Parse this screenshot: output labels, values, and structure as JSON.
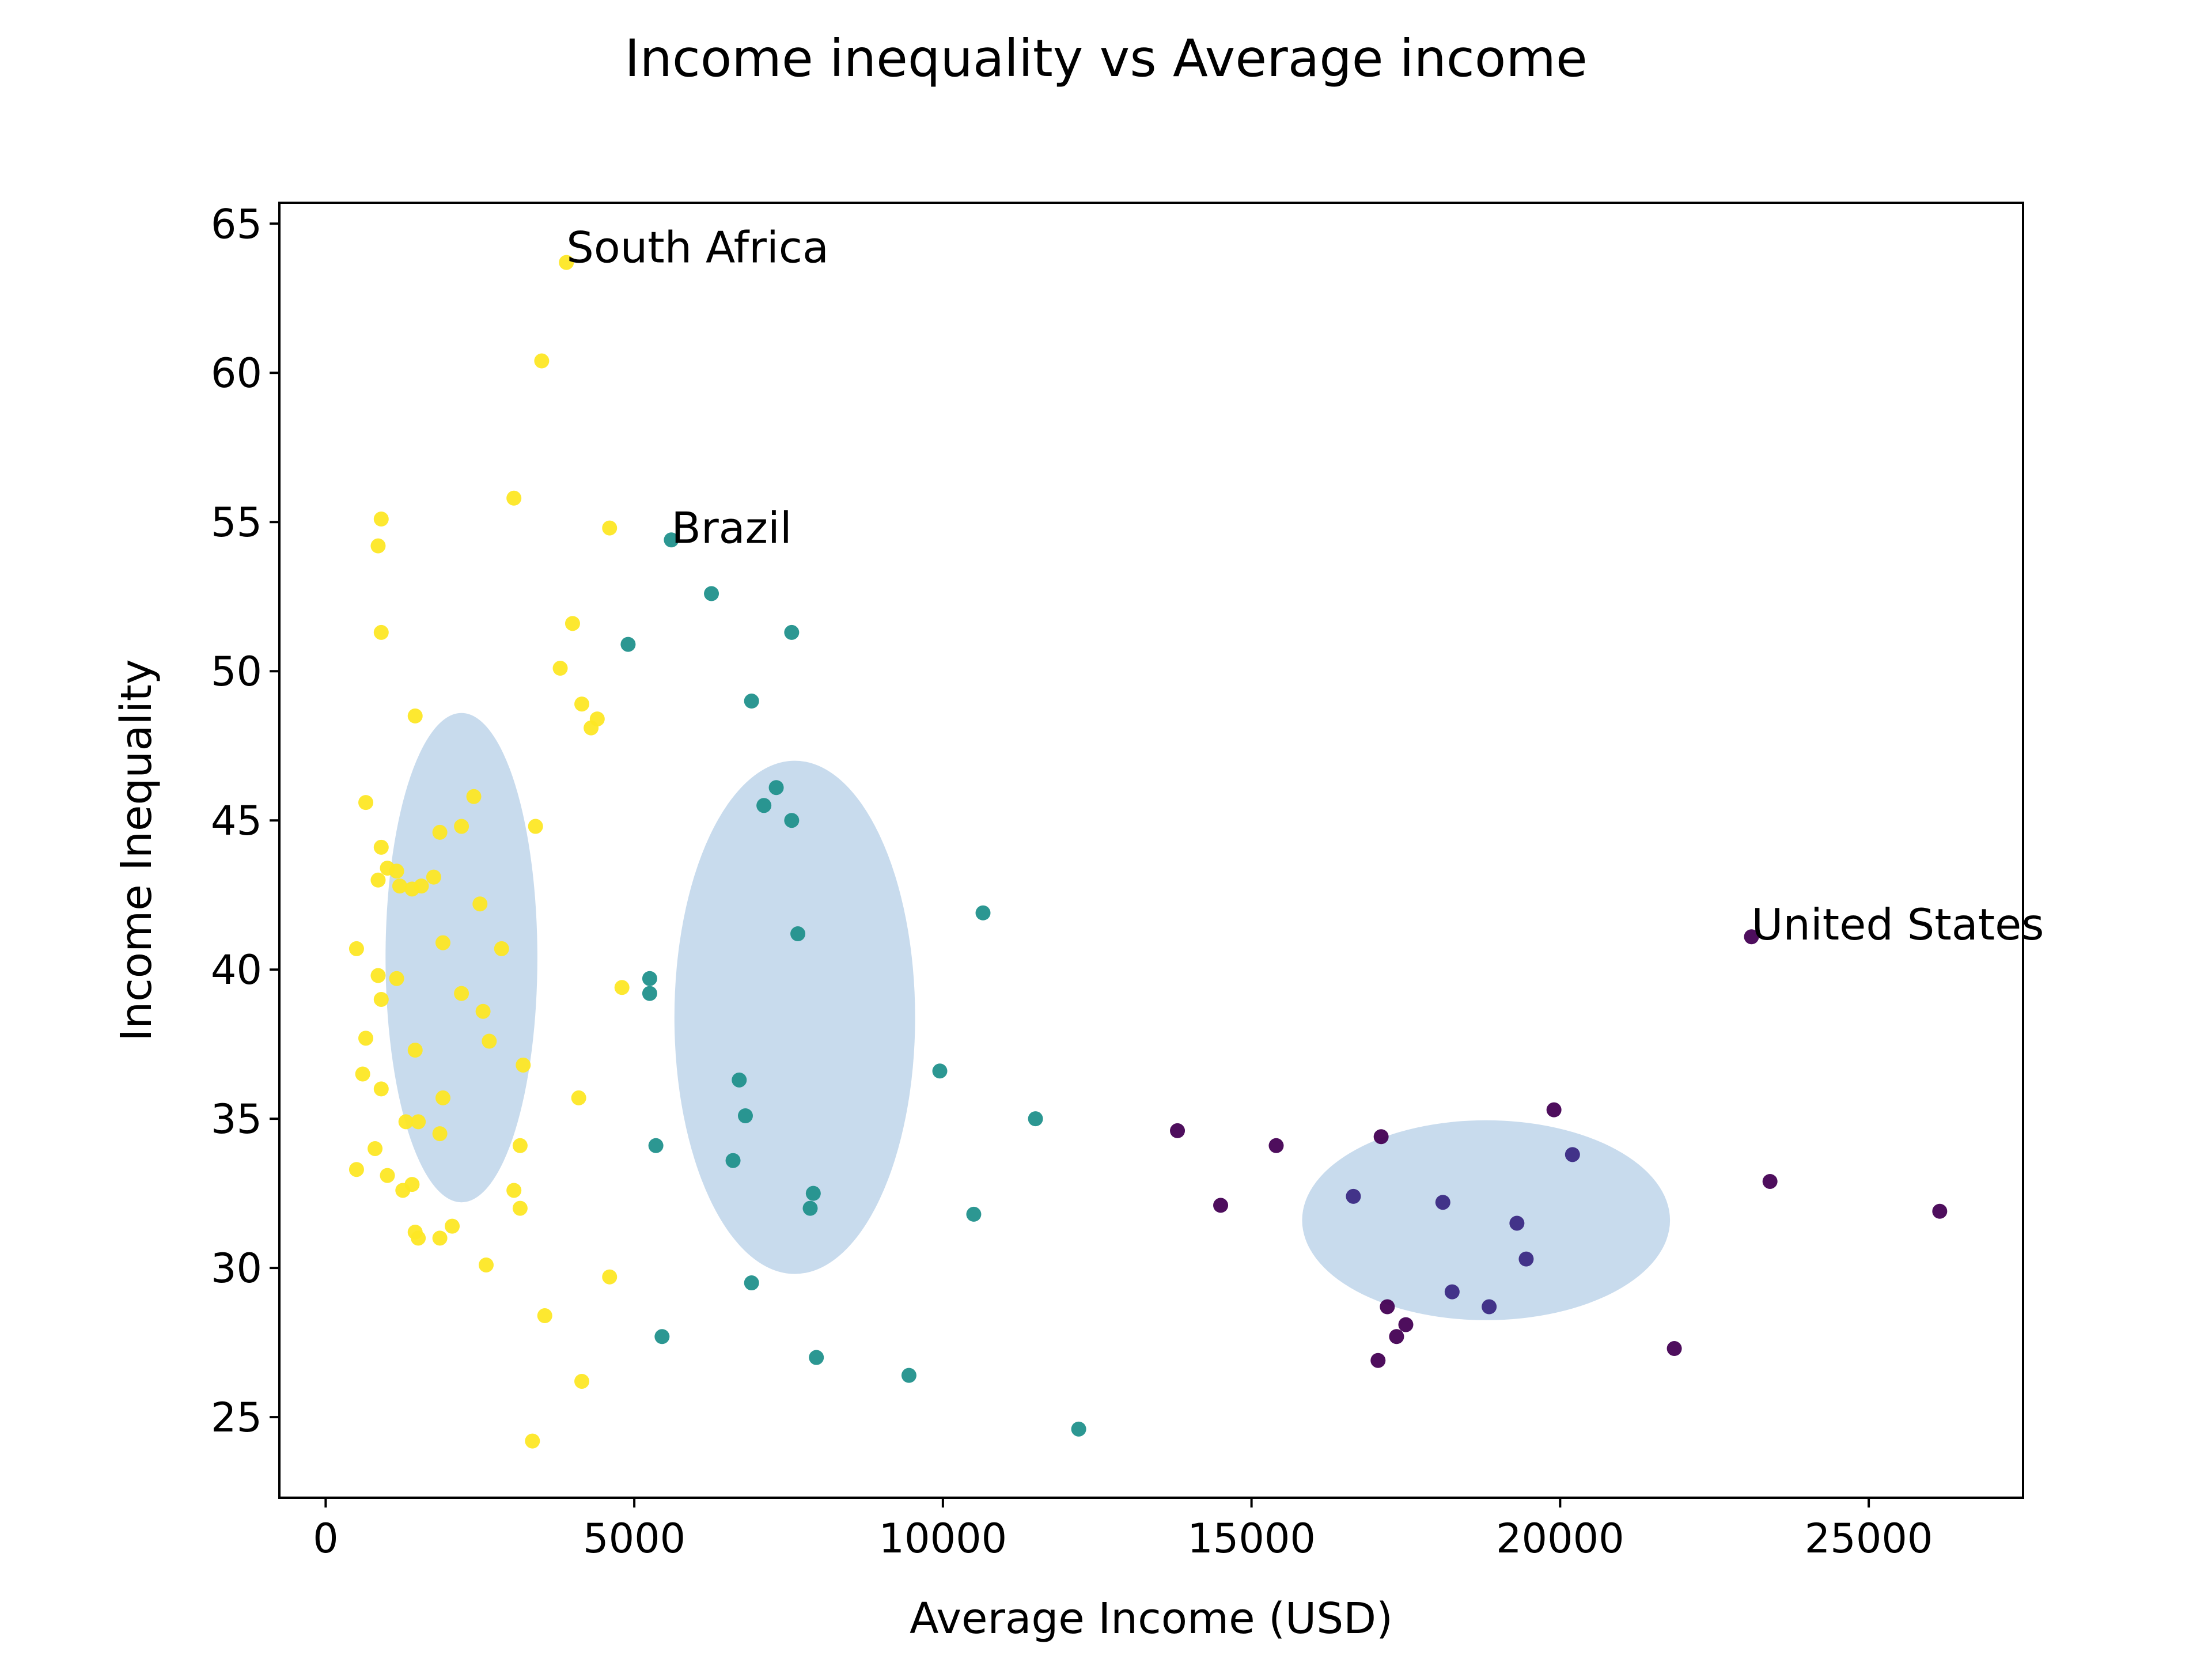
{
  "chart_data": {
    "type": "scatter",
    "title": "Income inequality vs Average income",
    "xlabel": "Average Income (USD)",
    "ylabel": "Income Inequality",
    "xlim": [
      -750,
      27500
    ],
    "ylim": [
      22.3,
      65.7
    ],
    "xticks": [
      0,
      5000,
      10000,
      15000,
      20000,
      25000
    ],
    "yticks": [
      25,
      30,
      35,
      40,
      45,
      50,
      55,
      60,
      65
    ],
    "grid": false,
    "legend": "none",
    "colors": {
      "low": "#fde725",
      "mid": "#21918c",
      "high_a": "#440154",
      "high_b": "#3b2a84",
      "ellipse": "#c5d9ec"
    },
    "ellipses": [
      {
        "cx": 2200,
        "cy": 40.4,
        "rx": 1230,
        "ry": 8.2
      },
      {
        "cx": 7600,
        "cy": 38.4,
        "rx": 1950,
        "ry": 8.6
      },
      {
        "cx": 18800,
        "cy": 31.6,
        "rx": 2980,
        "ry": 3.35
      }
    ],
    "annotations": [
      {
        "text": "South Africa",
        "x": 3900,
        "y": 63.8
      },
      {
        "text": "Brazil",
        "x": 5600,
        "y": 54.4
      },
      {
        "text": "United States",
        "x": 23100,
        "y": 41.1
      }
    ],
    "series": [
      {
        "color": "#fde725",
        "points": [
          [
            3900,
            63.7
          ],
          [
            3500,
            60.4
          ],
          [
            3050,
            55.8
          ],
          [
            4600,
            54.8
          ],
          [
            900,
            55.1
          ],
          [
            850,
            54.2
          ],
          [
            4000,
            51.6
          ],
          [
            900,
            51.3
          ],
          [
            3800,
            50.1
          ],
          [
            4150,
            48.9
          ],
          [
            4400,
            48.4
          ],
          [
            4300,
            48.1
          ],
          [
            1450,
            48.5
          ],
          [
            2400,
            45.8
          ],
          [
            650,
            45.6
          ],
          [
            2200,
            44.8
          ],
          [
            1850,
            44.6
          ],
          [
            3400,
            44.8
          ],
          [
            900,
            44.1
          ],
          [
            1000,
            43.4
          ],
          [
            1150,
            43.3
          ],
          [
            1750,
            43.1
          ],
          [
            850,
            43.0
          ],
          [
            1200,
            42.8
          ],
          [
            1400,
            42.7
          ],
          [
            1550,
            42.8
          ],
          [
            2500,
            42.2
          ],
          [
            500,
            40.7
          ],
          [
            1900,
            40.9
          ],
          [
            2850,
            40.7
          ],
          [
            850,
            39.8
          ],
          [
            1150,
            39.7
          ],
          [
            4800,
            39.4
          ],
          [
            2200,
            39.2
          ],
          [
            900,
            39.0
          ],
          [
            2550,
            38.6
          ],
          [
            650,
            37.7
          ],
          [
            2650,
            37.6
          ],
          [
            1450,
            37.3
          ],
          [
            3200,
            36.8
          ],
          [
            600,
            36.5
          ],
          [
            900,
            36.0
          ],
          [
            4100,
            35.7
          ],
          [
            1900,
            35.7
          ],
          [
            1300,
            34.9
          ],
          [
            1500,
            34.9
          ],
          [
            1850,
            34.5
          ],
          [
            3150,
            34.1
          ],
          [
            800,
            34.0
          ],
          [
            500,
            33.3
          ],
          [
            1000,
            33.1
          ],
          [
            1400,
            32.8
          ],
          [
            1250,
            32.6
          ],
          [
            3050,
            32.6
          ],
          [
            3150,
            32.0
          ],
          [
            2050,
            31.4
          ],
          [
            1450,
            31.2
          ],
          [
            1500,
            31.0
          ],
          [
            1850,
            31.0
          ],
          [
            2600,
            30.1
          ],
          [
            4600,
            29.7
          ],
          [
            3550,
            28.4
          ],
          [
            4150,
            26.2
          ],
          [
            3350,
            24.2
          ]
        ]
      },
      {
        "color": "#21918c",
        "points": [
          [
            5600,
            54.4
          ],
          [
            6250,
            52.6
          ],
          [
            7550,
            51.3
          ],
          [
            4900,
            50.9
          ],
          [
            6900,
            49.0
          ],
          [
            7300,
            46.1
          ],
          [
            7100,
            45.5
          ],
          [
            7550,
            45.0
          ],
          [
            10650,
            41.9
          ],
          [
            7650,
            41.2
          ],
          [
            5250,
            39.7
          ],
          [
            5250,
            39.2
          ],
          [
            9950,
            36.6
          ],
          [
            6700,
            36.3
          ],
          [
            6800,
            35.1
          ],
          [
            11500,
            35.0
          ],
          [
            5350,
            34.1
          ],
          [
            6600,
            33.6
          ],
          [
            7900,
            32.5
          ],
          [
            7850,
            32.0
          ],
          [
            10500,
            31.8
          ],
          [
            6900,
            29.5
          ],
          [
            5450,
            27.7
          ],
          [
            7950,
            27.0
          ],
          [
            9450,
            26.4
          ],
          [
            12200,
            24.6
          ]
        ]
      },
      {
        "color": "#440154",
        "points": [
          [
            23100,
            41.1
          ],
          [
            19900,
            35.3
          ],
          [
            13800,
            34.6
          ],
          [
            15400,
            34.1
          ],
          [
            17100,
            34.4
          ],
          [
            23400,
            32.9
          ],
          [
            14500,
            32.1
          ],
          [
            26150,
            31.9
          ],
          [
            17200,
            28.7
          ],
          [
            17500,
            28.1
          ],
          [
            17350,
            27.7
          ],
          [
            21850,
            27.3
          ],
          [
            17050,
            26.9
          ]
        ]
      },
      {
        "color": "#3b2a84",
        "points": [
          [
            20200,
            33.8
          ],
          [
            16650,
            32.4
          ],
          [
            18100,
            32.2
          ],
          [
            19300,
            31.5
          ],
          [
            19450,
            30.3
          ],
          [
            18250,
            29.2
          ],
          [
            18850,
            28.7
          ]
        ]
      }
    ]
  }
}
